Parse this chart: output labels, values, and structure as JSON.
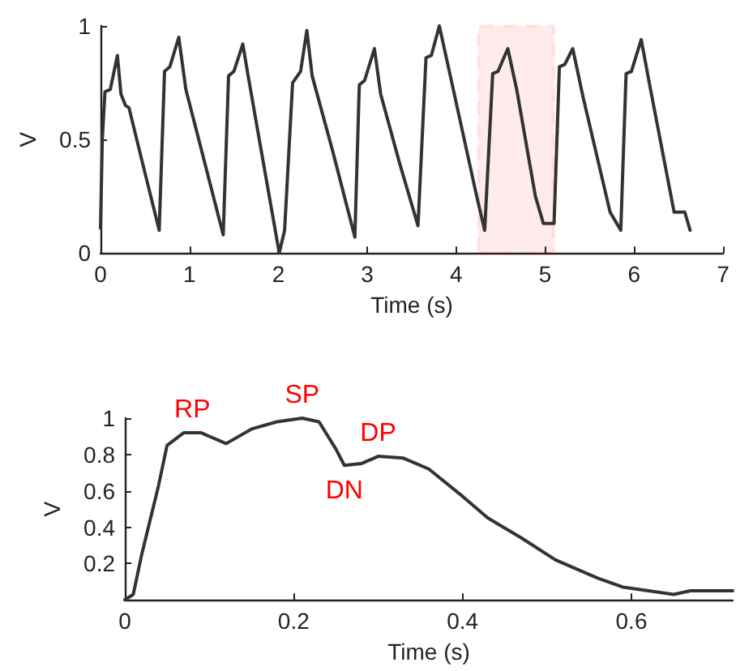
{
  "chart_data": [
    {
      "type": "line",
      "xlabel": "Time (s)",
      "ylabel": "V",
      "xlim": [
        0,
        7
      ],
      "ylim": [
        0,
        1
      ],
      "xticks": [
        0,
        1,
        2,
        3,
        4,
        5,
        6,
        7
      ],
      "yticks": [
        0,
        0.5,
        1
      ],
      "marker": "none",
      "line_style": "solid",
      "bands": [
        {
          "axis": "x",
          "from": 4.25,
          "to": 5.1,
          "color": "#ff0000"
        }
      ],
      "series": [
        {
          "color": "#333333",
          "x": [
            0,
            0.02,
            0.05,
            0.11,
            0.19,
            0.23,
            0.28,
            0.32,
            0.47,
            0.66,
            0.72,
            0.78,
            0.88,
            0.96,
            1.17,
            1.38,
            1.44,
            1.5,
            1.6,
            1.66,
            1.83,
            2.01,
            2.07,
            2.16,
            2.25,
            2.32,
            2.38,
            2.61,
            2.86,
            2.91,
            2.97,
            3.08,
            3.15,
            3.36,
            3.57,
            3.66,
            3.72,
            3.81,
            3.9,
            4.23,
            4.32,
            4.41,
            4.47,
            4.58,
            4.68,
            4.89,
            4.98,
            5.1,
            5.16,
            5.22,
            5.31,
            5.43,
            5.73,
            5.85,
            5.91,
            5.97,
            6.08,
            6.18,
            6.45,
            6.57,
            6.63
          ],
          "values": [
            0.11,
            0.5,
            0.71,
            0.72,
            0.87,
            0.7,
            0.65,
            0.64,
            0.4,
            0.1,
            0.8,
            0.82,
            0.95,
            0.72,
            0.4,
            0.08,
            0.78,
            0.8,
            0.92,
            0.78,
            0.4,
            0.0,
            0.1,
            0.75,
            0.8,
            0.98,
            0.78,
            0.45,
            0.07,
            0.74,
            0.76,
            0.9,
            0.7,
            0.4,
            0.12,
            0.86,
            0.87,
            1.0,
            0.84,
            0.25,
            0.1,
            0.79,
            0.8,
            0.9,
            0.72,
            0.25,
            0.13,
            0.13,
            0.82,
            0.83,
            0.9,
            0.68,
            0.18,
            0.1,
            0.79,
            0.8,
            0.94,
            0.73,
            0.18,
            0.18,
            0.1
          ]
        }
      ]
    },
    {
      "type": "line",
      "xlabel": "Time (s)",
      "ylabel": "V",
      "xlim": [
        0,
        0.72
      ],
      "ylim": [
        0,
        1
      ],
      "xticks": [
        0,
        0.2,
        0.4,
        0.6
      ],
      "yticks": [
        0.2,
        0.4,
        0.6,
        0.8,
        1
      ],
      "marker": "none",
      "line_style": "solid",
      "annotations": [
        {
          "text": "RP",
          "x": 0.08,
          "y": 0.92
        },
        {
          "text": "SP",
          "x": 0.21,
          "y": 1.0
        },
        {
          "text": "DN",
          "x": 0.26,
          "y": 0.74
        },
        {
          "text": "DP",
          "x": 0.3,
          "y": 0.79
        }
      ],
      "series": [
        {
          "color": "#333333",
          "x": [
            0,
            0.01,
            0.02,
            0.04,
            0.05,
            0.07,
            0.09,
            0.12,
            0.15,
            0.18,
            0.21,
            0.23,
            0.25,
            0.26,
            0.28,
            0.3,
            0.33,
            0.36,
            0.4,
            0.43,
            0.47,
            0.51,
            0.56,
            0.59,
            0.65,
            0.67,
            0.72
          ],
          "values": [
            0.0,
            0.03,
            0.25,
            0.63,
            0.85,
            0.92,
            0.92,
            0.86,
            0.94,
            0.98,
            1.0,
            0.98,
            0.83,
            0.74,
            0.75,
            0.79,
            0.78,
            0.72,
            0.57,
            0.45,
            0.34,
            0.22,
            0.12,
            0.07,
            0.03,
            0.05,
            0.05
          ]
        }
      ]
    }
  ]
}
